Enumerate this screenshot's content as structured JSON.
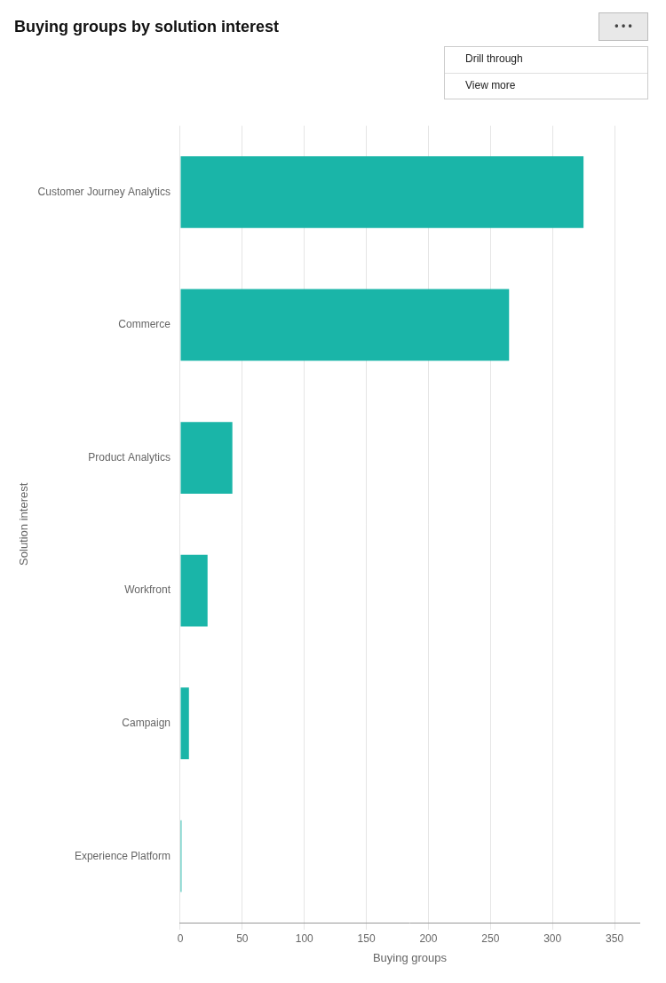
{
  "chart_data": {
    "type": "bar",
    "orientation": "horizontal",
    "title": "Buying groups by solution interest",
    "xlabel": "Buying groups",
    "ylabel": "Solution interest",
    "categories": [
      "Customer Journey Analytics",
      "Commerce",
      "Product Analytics",
      "Workfront",
      "Campaign",
      "Experience Platform"
    ],
    "values": [
      325,
      265,
      42,
      22,
      7,
      1
    ],
    "color": "#1ab5a8",
    "xlim": [
      0,
      370
    ],
    "xticks": [
      0,
      50,
      100,
      150,
      200,
      250,
      300,
      350
    ],
    "grid": true,
    "annotations": [
      "• • •",
      "Drill through",
      "View more"
    ]
  }
}
